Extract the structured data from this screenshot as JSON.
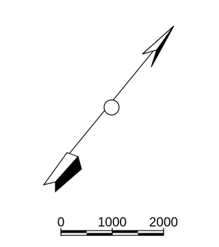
{
  "north_arrow": {
    "icon": "north-arrow-icon",
    "colors": {
      "ink": "#000000",
      "paper": "#ffffff"
    }
  },
  "scale_bar": {
    "labels": [
      "0",
      "1000",
      "2000"
    ],
    "values": [
      0,
      1000,
      2000
    ],
    "segment_colors": [
      "#000000",
      "#ffffff",
      "#000000",
      "#ffffff"
    ]
  }
}
